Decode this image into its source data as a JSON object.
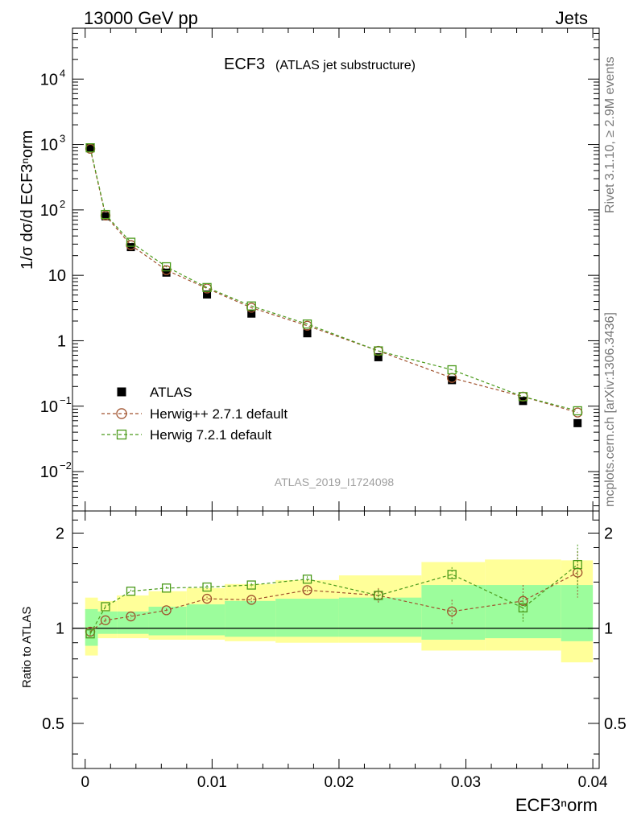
{
  "header": {
    "left": "13000 GeV pp",
    "right": "Jets"
  },
  "side_labels": {
    "rivet": "Rivet 3.1.10, ≥ 2.9M events",
    "mcplots": "mcplots.cern.ch [arXiv:1306.3436]"
  },
  "chart_data": {
    "type": "scatter",
    "title": "ECF3",
    "subtitle": "(ATLAS jet substructure)",
    "watermark": "ATLAS_2019_I1724098",
    "xlabel": "ECF3ⁿorm",
    "ylabel": "1/σ dσ/d ECF3ⁿorm",
    "ratio_ylabel": "Ratio to ATLAS",
    "xlim": [
      -0.001,
      0.0405
    ],
    "ylim": [
      0.0025,
      60000
    ],
    "yscale": "log",
    "ratio_ylim": [
      0.36,
      2.35
    ],
    "ratio_yscale": "log",
    "x_ticks": [
      0,
      0.01,
      0.02,
      0.03,
      0.04
    ],
    "x_tick_labels": [
      "0",
      "0.01",
      "0.02",
      "0.03",
      "0.04"
    ],
    "y_ticks": [
      {
        "value": 0.01,
        "base": "10",
        "exp": "−2"
      },
      {
        "value": 0.1,
        "base": "10",
        "exp": "−1"
      },
      {
        "value": 1,
        "base": "1",
        "exp": ""
      },
      {
        "value": 10,
        "base": "10",
        "exp": ""
      },
      {
        "value": 100,
        "base": "10",
        "exp": "2"
      },
      {
        "value": 1000,
        "base": "10",
        "exp": "3"
      },
      {
        "value": 10000,
        "base": "10",
        "exp": "4"
      }
    ],
    "ratio_ticks": [
      0.5,
      1,
      2
    ],
    "ratio_tick_labels": [
      "0.5",
      "1",
      "2"
    ],
    "bins": [
      [
        0,
        0.001
      ],
      [
        0.001,
        0.0025
      ],
      [
        0.0025,
        0.005
      ],
      [
        0.005,
        0.008
      ],
      [
        0.008,
        0.011
      ],
      [
        0.011,
        0.015
      ],
      [
        0.015,
        0.02
      ],
      [
        0.02,
        0.0265
      ],
      [
        0.0265,
        0.0315
      ],
      [
        0.0315,
        0.0375
      ],
      [
        0.0375,
        0.04
      ]
    ],
    "x": [
      0.0004,
      0.0016,
      0.0036,
      0.0064,
      0.0096,
      0.0131,
      0.0175,
      0.0231,
      0.0289,
      0.0345,
      0.0388
    ],
    "band_inner": [
      [
        0.88,
        1.15
      ],
      [
        0.96,
        1.13
      ],
      [
        0.96,
        1.13
      ],
      [
        0.95,
        1.17
      ],
      [
        0.95,
        1.19
      ],
      [
        0.94,
        1.22
      ],
      [
        0.94,
        1.24
      ],
      [
        0.94,
        1.25
      ],
      [
        0.92,
        1.37
      ],
      [
        0.93,
        1.37
      ],
      [
        0.91,
        1.37
      ]
    ],
    "band_outer": [
      [
        0.82,
        1.25
      ],
      [
        0.93,
        1.22
      ],
      [
        0.93,
        1.27
      ],
      [
        0.92,
        1.31
      ],
      [
        0.92,
        1.34
      ],
      [
        0.91,
        1.38
      ],
      [
        0.9,
        1.42
      ],
      [
        0.9,
        1.47
      ],
      [
        0.85,
        1.62
      ],
      [
        0.85,
        1.65
      ],
      [
        0.78,
        1.64
      ]
    ],
    "series": [
      {
        "name": "ATLAS",
        "color": "#000000",
        "marker": "filled-square",
        "values": [
          880,
          80,
          27,
          11,
          5.1,
          2.6,
          1.3,
          0.56,
          0.25,
          0.12,
          0.055
        ],
        "ratio": [
          1,
          1,
          1,
          1,
          1,
          1,
          1,
          1,
          1,
          1,
          1
        ]
      },
      {
        "name": "Herwig++ 2.7.1 default",
        "color": "#a0522d",
        "marker": "open-circle",
        "values": [
          860,
          82,
          29,
          12,
          6.3,
          3.2,
          1.7,
          0.7,
          0.27,
          0.14,
          0.08
        ],
        "ratio": [
          0.975,
          1.06,
          1.09,
          1.14,
          1.24,
          1.23,
          1.32,
          1.27,
          1.13,
          1.22,
          1.5
        ],
        "ratio_err": [
          0.02,
          0.015,
          0.015,
          0.015,
          0.02,
          0.02,
          0.03,
          0.07,
          0.1,
          0.15,
          0.25
        ]
      },
      {
        "name": "Herwig 7.2.1 default",
        "color": "#4a9a1a",
        "marker": "open-square",
        "values": [
          890,
          85,
          32,
          13.5,
          6.5,
          3.4,
          1.8,
          0.7,
          0.36,
          0.14,
          0.085
        ],
        "ratio": [
          0.96,
          1.17,
          1.31,
          1.34,
          1.35,
          1.37,
          1.43,
          1.27,
          1.48,
          1.16,
          1.59
        ],
        "ratio_err": [
          0.02,
          0.015,
          0.015,
          0.015,
          0.02,
          0.02,
          0.03,
          0.06,
          0.08,
          0.12,
          0.25
        ]
      }
    ],
    "legend": {
      "placement": "lower-left",
      "entries": [
        "ATLAS",
        "Herwig++ 2.7.1 default",
        "Herwig 7.2.1 default"
      ]
    },
    "colors": {
      "band_inner": "#9cfd9c",
      "band_outer": "#ffff99"
    }
  }
}
